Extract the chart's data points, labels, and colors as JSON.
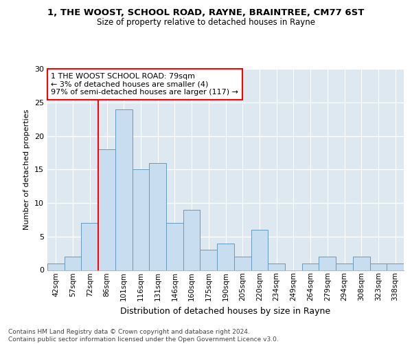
{
  "title": "1, THE WOOST, SCHOOL ROAD, RAYNE, BRAINTREE, CM77 6ST",
  "subtitle": "Size of property relative to detached houses in Rayne",
  "xlabel": "Distribution of detached houses by size in Rayne",
  "ylabel": "Number of detached properties",
  "bar_labels": [
    "42sqm",
    "57sqm",
    "72sqm",
    "86sqm",
    "101sqm",
    "116sqm",
    "131sqm",
    "146sqm",
    "160sqm",
    "175sqm",
    "190sqm",
    "205sqm",
    "220sqm",
    "234sqm",
    "249sqm",
    "264sqm",
    "279sqm",
    "294sqm",
    "308sqm",
    "323sqm",
    "338sqm"
  ],
  "bar_values": [
    1,
    2,
    7,
    18,
    24,
    15,
    16,
    7,
    9,
    3,
    4,
    2,
    6,
    1,
    0,
    1,
    2,
    1,
    2,
    1,
    1
  ],
  "bar_color": "#c9ddf0",
  "bar_edge_color": "#6699bb",
  "ylim_max": 30,
  "yticks": [
    0,
    5,
    10,
    15,
    20,
    25,
    30
  ],
  "red_line_x": 2.5,
  "annotation_text": "1 THE WOOST SCHOOL ROAD: 79sqm\n← 3% of detached houses are smaller (4)\n97% of semi-detached houses are larger (117) →",
  "footer_line1": "Contains HM Land Registry data © Crown copyright and database right 2024.",
  "footer_line2": "Contains public sector information licensed under the Open Government Licence v3.0.",
  "plot_bg_color": "#dde8f0",
  "fig_bg_color": "#ffffff",
  "grid_color": "#ffffff",
  "title_fontsize": 9.5,
  "subtitle_fontsize": 8.5,
  "ylabel_fontsize": 8.0,
  "xlabel_fontsize": 9.0,
  "tick_fontsize": 7.5,
  "annot_fontsize": 8.0,
  "footer_fontsize": 6.5
}
